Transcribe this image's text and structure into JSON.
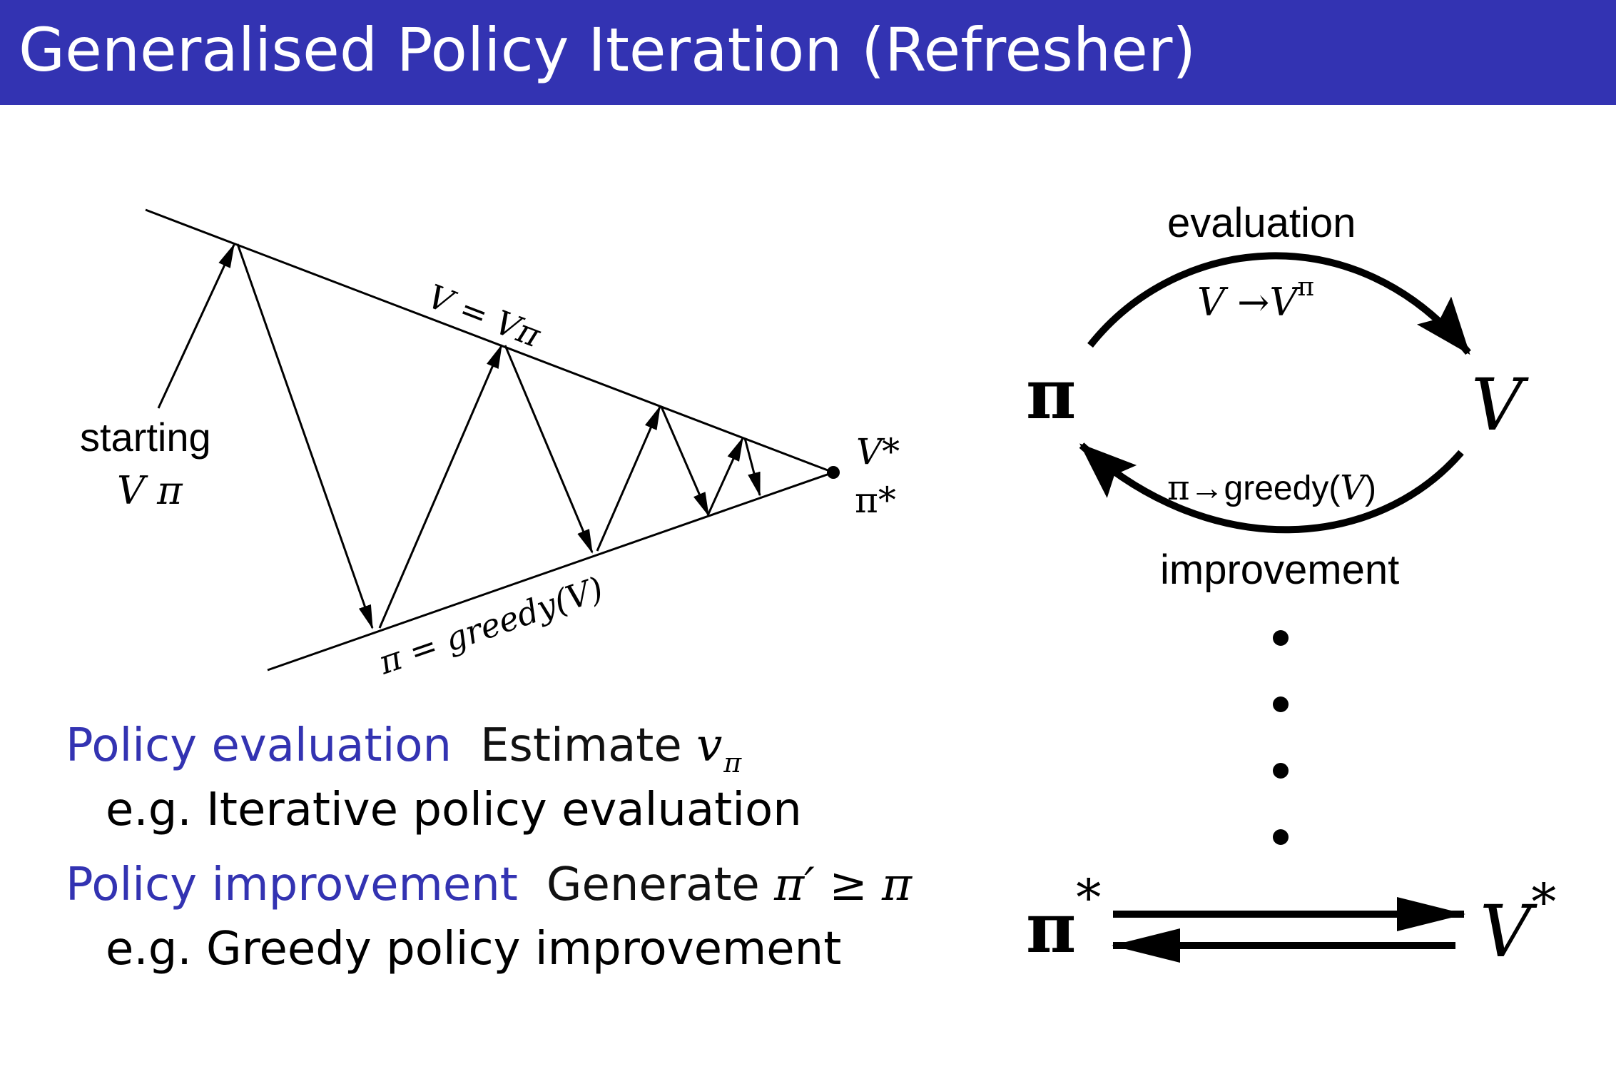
{
  "header": {
    "title": "Generalised Policy Iteration (Refresher)"
  },
  "left_diagram": {
    "top_line_label": "V = Vπ",
    "bottom_line_label": "π = greedy(V)",
    "start_label_1": "starting",
    "start_label_2": "V  π",
    "converge_v": "V*",
    "converge_pi": "π*"
  },
  "right_diagram": {
    "pi": "π",
    "v": "V",
    "evaluation": "evaluation",
    "eval_formula_left": "V →V",
    "eval_formula_sup": "π",
    "improvement": "improvement",
    "improve_pi": "π",
    "improve_formula": "→greedy(",
    "improve_v": "V",
    "improve_close": ")",
    "pi_star": "π",
    "v_star": "V",
    "star": "*"
  },
  "bullets": [
    {
      "term": "Policy evaluation",
      "desc": "Estimate ",
      "math": "v",
      "sub": "π",
      "example": "e.g.  Iterative policy evaluation"
    },
    {
      "term": "Policy improvement",
      "desc": "Generate ",
      "math": "π′ ≥ π",
      "example": "e.g.  Greedy policy improvement"
    }
  ]
}
